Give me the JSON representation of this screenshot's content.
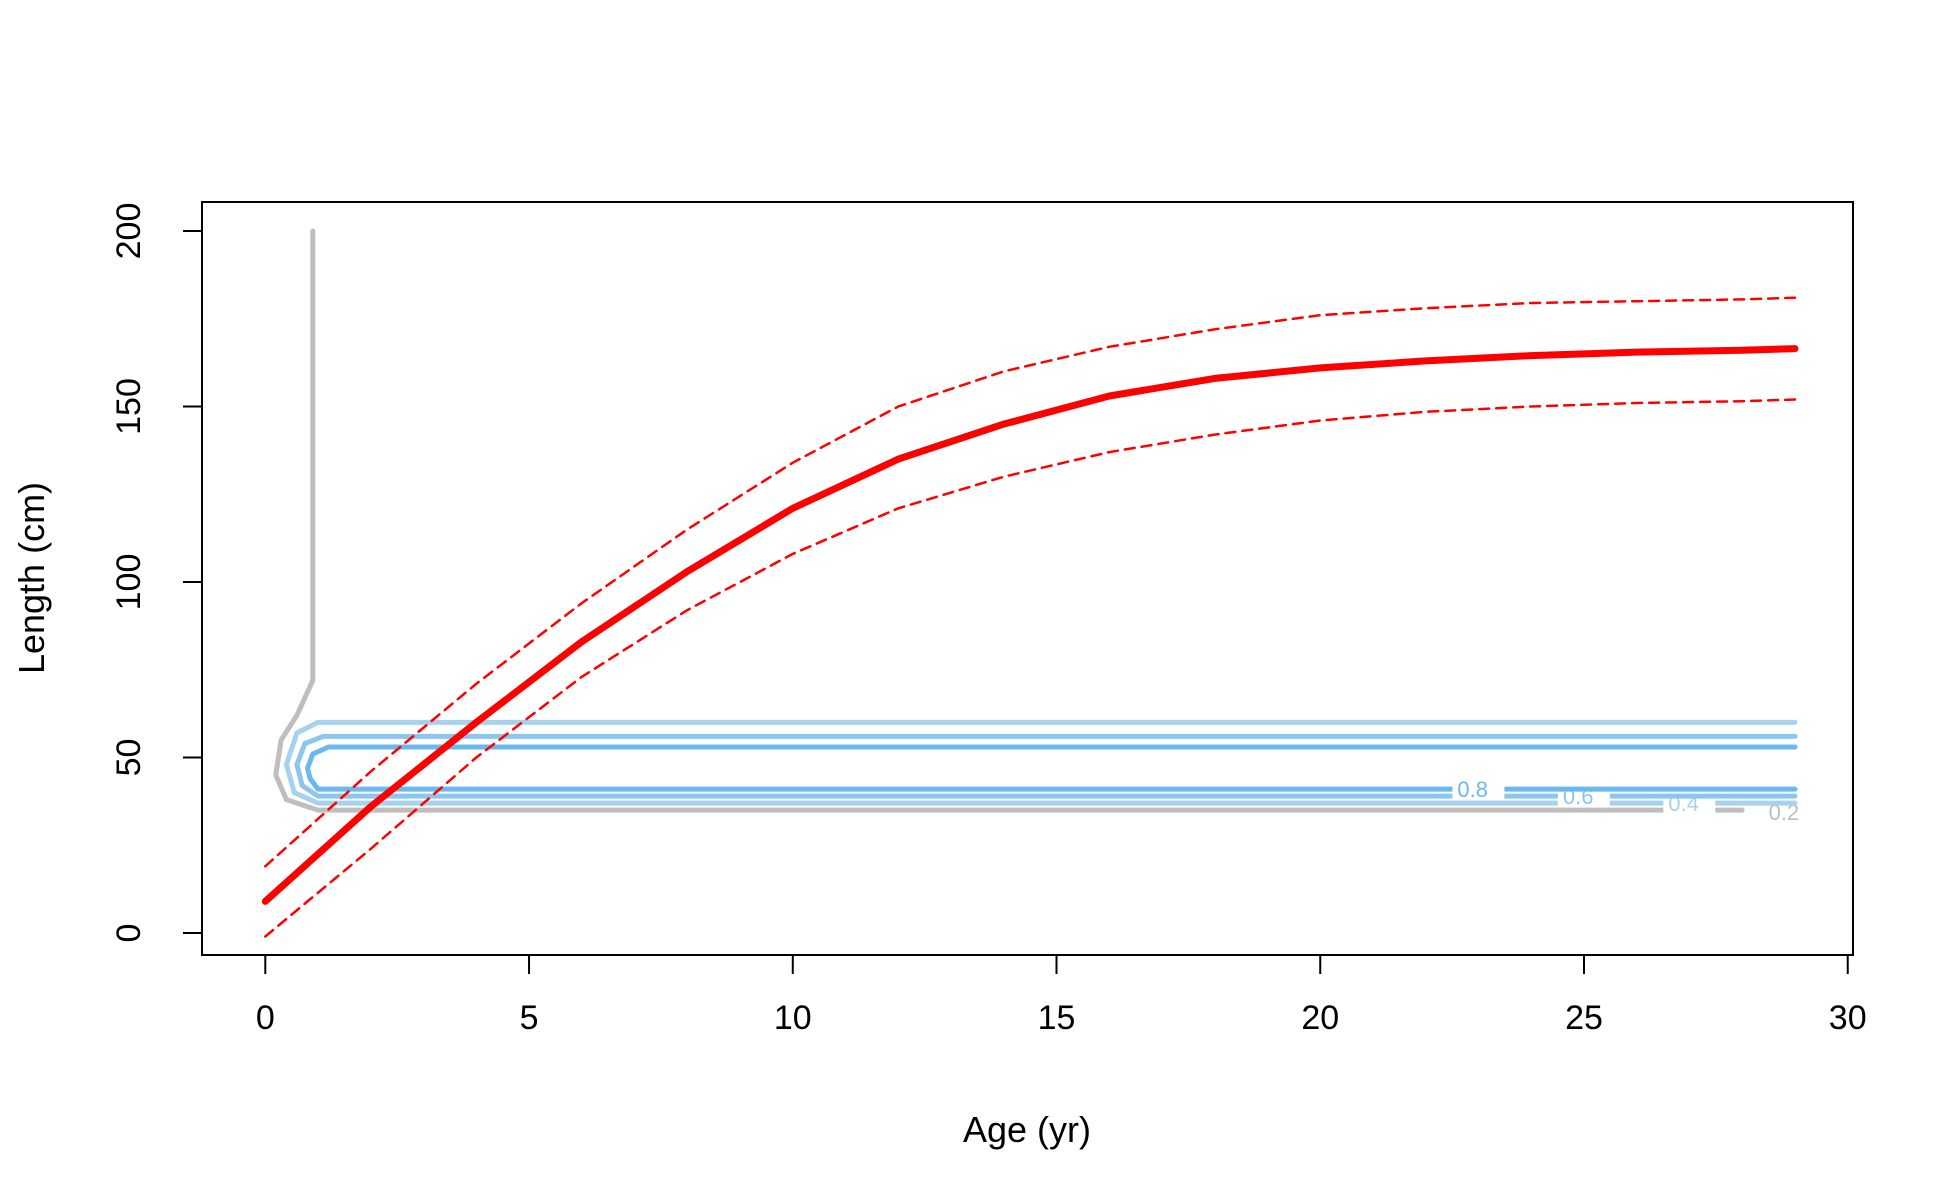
{
  "chart_data": {
    "type": "line",
    "title": "",
    "xlabel": "Age (yr)",
    "ylabel": "Length (cm)",
    "xlim": [
      -1.2,
      30.1
    ],
    "ylim": [
      -6,
      200
    ],
    "x_ticks": [
      0,
      5,
      10,
      15,
      20,
      25,
      30
    ],
    "x_tick_labels": [
      "0",
      "5",
      "10",
      "15",
      "20",
      "25",
      "30"
    ],
    "y_ticks": [
      0,
      50,
      100,
      150,
      200
    ],
    "y_tick_labels": [
      "0",
      "50",
      "100",
      "150",
      "200"
    ],
    "grid": false,
    "legend": "none",
    "series": [
      {
        "style": "solid-thick",
        "color": "#ff0000",
        "x": [
          0,
          2,
          4,
          6,
          8,
          10,
          12,
          14,
          16,
          18,
          20,
          22,
          24,
          26,
          28,
          29
        ],
        "y": [
          9,
          36,
          60,
          83,
          103,
          121,
          135,
          145,
          153,
          158,
          161,
          163,
          164.5,
          165.5,
          166,
          166.5
        ]
      },
      {
        "style": "dashed",
        "color": "#ff0000",
        "x": [
          0,
          2,
          4,
          6,
          8,
          10,
          12,
          14,
          16,
          18,
          20,
          22,
          24,
          26,
          28,
          29
        ],
        "y": [
          19,
          46,
          71,
          94,
          115,
          134,
          150,
          160,
          167,
          172,
          176,
          178,
          179.5,
          180,
          180.5,
          181
        ]
      },
      {
        "style": "dashed",
        "color": "#ff0000",
        "x": [
          0,
          2,
          4,
          6,
          8,
          10,
          12,
          14,
          16,
          18,
          20,
          22,
          24,
          26,
          28,
          29
        ],
        "y": [
          -1,
          24,
          50,
          73,
          92,
          108,
          121,
          130,
          137,
          142,
          146,
          148.5,
          150,
          151,
          151.5,
          152
        ]
      }
    ],
    "contours": [
      {
        "level": "0.2",
        "color": "#bebebe",
        "label_at": [
          28.5,
          34.5
        ],
        "path": [
          [
            0.9,
            200
          ],
          [
            0.9,
            72
          ],
          [
            0.6,
            62
          ],
          [
            0.3,
            55
          ],
          [
            0.2,
            45
          ],
          [
            0.4,
            38
          ],
          [
            1.0,
            35
          ],
          [
            28,
            35
          ]
        ]
      },
      {
        "level": "0.4",
        "color": "#a6d2ed",
        "label_at": [
          26.6,
          37
        ],
        "path": [
          [
            29,
            37
          ],
          [
            1.0,
            37
          ],
          [
            0.55,
            40
          ],
          [
            0.4,
            48
          ],
          [
            0.6,
            57
          ],
          [
            1.0,
            60
          ],
          [
            29,
            60
          ]
        ]
      },
      {
        "level": "0.6",
        "color": "#8cc6ee",
        "label_at": [
          24.6,
          39
        ],
        "path": [
          [
            29,
            39
          ],
          [
            1.0,
            39
          ],
          [
            0.7,
            42
          ],
          [
            0.6,
            48
          ],
          [
            0.75,
            54
          ],
          [
            1.1,
            56
          ],
          [
            29,
            56
          ]
        ]
      },
      {
        "level": "0.8",
        "color": "#6ab8f0",
        "label_at": [
          22.6,
          41
        ],
        "path": [
          [
            29,
            41
          ],
          [
            1.0,
            41
          ],
          [
            0.85,
            44
          ],
          [
            0.8,
            47
          ],
          [
            0.9,
            51
          ],
          [
            1.2,
            53
          ],
          [
            29,
            53
          ]
        ]
      }
    ]
  }
}
